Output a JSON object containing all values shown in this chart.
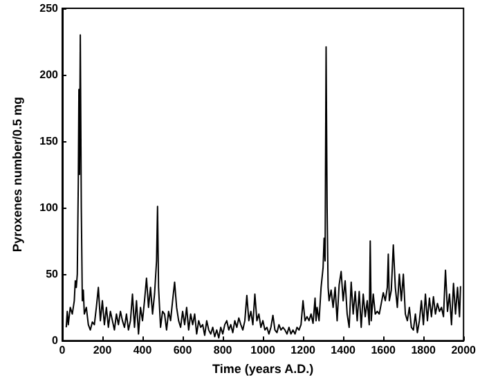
{
  "chart_data": {
    "type": "line",
    "xlabel": "Time (years A.D.)",
    "ylabel": "Pyroxenes number/0.5 mg",
    "xlim": [
      0,
      2000
    ],
    "xticks": [
      0,
      200,
      400,
      600,
      800,
      1000,
      1200,
      1400,
      1600,
      1800,
      2000
    ],
    "ylim": [
      0,
      250
    ],
    "yticks": [
      0,
      50,
      100,
      150,
      200,
      250
    ],
    "grid": false,
    "marker": "none",
    "line_style": "solid",
    "series": [
      {
        "color": "#000000",
        "x": [
          20,
          25,
          30,
          40,
          50,
          60,
          65,
          70,
          75,
          80,
          83,
          86,
          90,
          95,
          100,
          105,
          110,
          120,
          130,
          140,
          150,
          160,
          170,
          180,
          190,
          200,
          210,
          220,
          230,
          240,
          250,
          260,
          270,
          280,
          290,
          300,
          310,
          320,
          330,
          340,
          350,
          360,
          370,
          380,
          390,
          400,
          410,
          420,
          430,
          440,
          450,
          460,
          470,
          475,
          480,
          490,
          500,
          510,
          520,
          530,
          540,
          550,
          560,
          570,
          580,
          590,
          600,
          610,
          620,
          630,
          640,
          650,
          660,
          670,
          680,
          690,
          700,
          710,
          720,
          730,
          740,
          750,
          760,
          770,
          780,
          790,
          800,
          810,
          820,
          830,
          840,
          850,
          860,
          870,
          880,
          890,
          900,
          910,
          920,
          930,
          940,
          950,
          960,
          970,
          980,
          990,
          1000,
          1010,
          1020,
          1030,
          1040,
          1050,
          1060,
          1070,
          1080,
          1090,
          1100,
          1110,
          1120,
          1130,
          1140,
          1150,
          1160,
          1170,
          1180,
          1190,
          1200,
          1210,
          1220,
          1230,
          1240,
          1250,
          1260,
          1265,
          1270,
          1280,
          1290,
          1300,
          1305,
          1310,
          1315,
          1320,
          1325,
          1330,
          1340,
          1350,
          1360,
          1370,
          1380,
          1390,
          1400,
          1410,
          1420,
          1430,
          1440,
          1450,
          1460,
          1470,
          1480,
          1490,
          1500,
          1510,
          1520,
          1530,
          1535,
          1540,
          1550,
          1560,
          1570,
          1580,
          1590,
          1600,
          1610,
          1620,
          1625,
          1630,
          1640,
          1650,
          1660,
          1670,
          1680,
          1690,
          1700,
          1710,
          1720,
          1730,
          1740,
          1750,
          1760,
          1770,
          1780,
          1790,
          1800,
          1810,
          1820,
          1830,
          1840,
          1850,
          1860,
          1870,
          1880,
          1890,
          1900,
          1910,
          1920,
          1930,
          1940,
          1950,
          1960,
          1970,
          1980,
          1985
        ],
        "values": [
          10,
          22,
          12,
          25,
          20,
          30,
          45,
          40,
          50,
          120,
          189,
          125,
          230,
          100,
          30,
          38,
          20,
          25,
          12,
          8,
          14,
          12,
          25,
          40,
          15,
          30,
          12,
          25,
          10,
          22,
          15,
          8,
          20,
          12,
          22,
          15,
          10,
          20,
          8,
          15,
          35,
          10,
          30,
          5,
          25,
          15,
          30,
          47,
          25,
          40,
          20,
          35,
          60,
          101,
          40,
          10,
          22,
          20,
          8,
          22,
          15,
          30,
          44,
          25,
          15,
          10,
          22,
          12,
          25,
          8,
          20,
          12,
          20,
          5,
          15,
          10,
          12,
          4,
          15,
          8,
          5,
          10,
          3,
          8,
          2,
          10,
          5,
          12,
          15,
          8,
          12,
          6,
          15,
          10,
          17,
          12,
          8,
          15,
          34,
          15,
          22,
          12,
          35,
          15,
          20,
          10,
          15,
          8,
          10,
          5,
          10,
          19,
          8,
          6,
          12,
          8,
          10,
          8,
          5,
          10,
          5,
          8,
          5,
          10,
          8,
          12,
          30,
          15,
          18,
          15,
          20,
          13,
          32,
          15,
          25,
          15,
          40,
          55,
          77,
          60,
          221,
          100,
          40,
          30,
          38,
          25,
          40,
          15,
          42,
          52,
          30,
          45,
          20,
          10,
          44,
          20,
          37,
          15,
          37,
          10,
          35,
          18,
          30,
          12,
          75,
          15,
          35,
          20,
          22,
          20,
          28,
          36,
          30,
          40,
          65,
          30,
          38,
          72,
          40,
          25,
          50,
          30,
          50,
          20,
          15,
          25,
          10,
          8,
          20,
          6,
          15,
          30,
          12,
          35,
          15,
          32,
          18,
          33,
          20,
          28,
          22,
          25,
          18,
          53,
          22,
          35,
          12,
          43,
          20,
          40,
          18,
          41
        ]
      }
    ]
  }
}
